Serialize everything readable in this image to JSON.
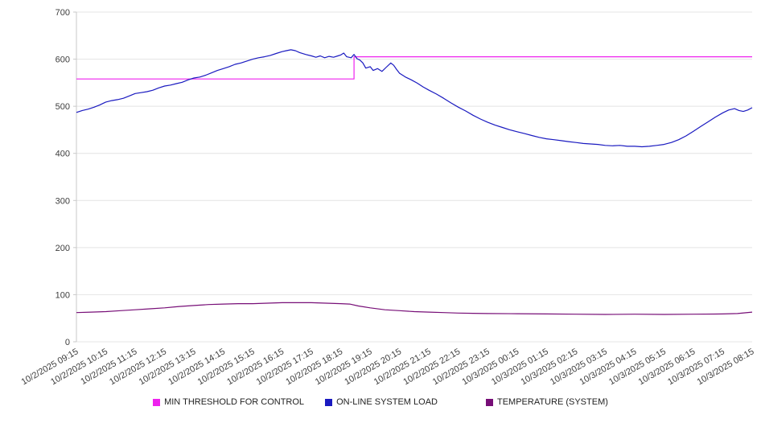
{
  "chart_data": {
    "type": "line",
    "title": "",
    "xlabel": "",
    "ylabel": "",
    "ylim": [
      0,
      700
    ],
    "yticks": [
      0,
      100,
      200,
      300,
      400,
      500,
      600,
      700
    ],
    "grid": true,
    "legend_position": "bottom",
    "grid_color": "#e4e4e4",
    "axis_color": "#c9c9c9",
    "label_color": "#3d3d3d",
    "background_color": "#ffffff",
    "x_labels": [
      "10/2/2025 09:15",
      "10/2/2025 10:15",
      "10/2/2025 11:15",
      "10/2/2025 12:15",
      "10/2/2025 13:15",
      "10/2/2025 14:15",
      "10/2/2025 15:15",
      "10/2/2025 16:15",
      "10/2/2025 17:15",
      "10/2/2025 18:15",
      "10/2/2025 19:15",
      "10/2/2025 20:15",
      "10/2/2025 21:15",
      "10/2/2025 22:15",
      "10/2/2025 23:15",
      "10/3/2025 00:15",
      "10/3/2025 01:15",
      "10/3/2025 02:15",
      "10/3/2025 03:15",
      "10/3/2025 04:15",
      "10/3/2025 05:15",
      "10/3/2025 06:15",
      "10/3/2025 07:15",
      "10/3/2025 08:15"
    ],
    "series": [
      {
        "name": "MIN THRESHOLD FOR CONTROL",
        "color": "#ee22ee",
        "points": [
          [
            0,
            558
          ],
          [
            9.45,
            558
          ],
          [
            9.45,
            605
          ],
          [
            23,
            605
          ]
        ]
      },
      {
        "name": "ON-LINE SYSTEM LOAD",
        "color": "#1a1ac0",
        "points": [
          [
            0,
            487
          ],
          [
            0.2,
            491
          ],
          [
            0.4,
            494
          ],
          [
            0.6,
            498
          ],
          [
            0.8,
            503
          ],
          [
            1,
            509
          ],
          [
            1.2,
            512
          ],
          [
            1.4,
            514
          ],
          [
            1.6,
            517
          ],
          [
            1.8,
            522
          ],
          [
            2,
            527
          ],
          [
            2.2,
            529
          ],
          [
            2.4,
            531
          ],
          [
            2.6,
            534
          ],
          [
            2.8,
            539
          ],
          [
            3,
            543
          ],
          [
            3.2,
            545
          ],
          [
            3.4,
            548
          ],
          [
            3.6,
            551
          ],
          [
            3.8,
            556
          ],
          [
            4,
            560
          ],
          [
            4.2,
            562
          ],
          [
            4.4,
            566
          ],
          [
            4.6,
            571
          ],
          [
            4.8,
            576
          ],
          [
            5,
            580
          ],
          [
            5.2,
            584
          ],
          [
            5.4,
            589
          ],
          [
            5.6,
            592
          ],
          [
            5.8,
            596
          ],
          [
            6,
            600
          ],
          [
            6.2,
            603
          ],
          [
            6.4,
            605
          ],
          [
            6.6,
            608
          ],
          [
            6.8,
            612
          ],
          [
            7,
            616
          ],
          [
            7.15,
            618
          ],
          [
            7.3,
            620
          ],
          [
            7.45,
            618
          ],
          [
            7.6,
            614
          ],
          [
            7.8,
            610
          ],
          [
            8,
            607
          ],
          [
            8.15,
            604
          ],
          [
            8.3,
            607
          ],
          [
            8.45,
            603
          ],
          [
            8.6,
            606
          ],
          [
            8.75,
            604
          ],
          [
            8.9,
            607
          ],
          [
            9,
            609
          ],
          [
            9.1,
            613
          ],
          [
            9.2,
            605
          ],
          [
            9.35,
            603
          ],
          [
            9.45,
            610
          ],
          [
            9.55,
            601
          ],
          [
            9.65,
            598
          ],
          [
            9.75,
            592
          ],
          [
            9.85,
            581
          ],
          [
            10,
            584
          ],
          [
            10.1,
            576
          ],
          [
            10.25,
            580
          ],
          [
            10.4,
            574
          ],
          [
            10.55,
            583
          ],
          [
            10.7,
            592
          ],
          [
            10.8,
            587
          ],
          [
            10.9,
            578
          ],
          [
            11,
            570
          ],
          [
            11.2,
            562
          ],
          [
            11.4,
            556
          ],
          [
            11.6,
            549
          ],
          [
            11.8,
            541
          ],
          [
            12,
            534
          ],
          [
            12.25,
            526
          ],
          [
            12.5,
            517
          ],
          [
            12.75,
            507
          ],
          [
            13,
            498
          ],
          [
            13.25,
            490
          ],
          [
            13.5,
            481
          ],
          [
            13.75,
            473
          ],
          [
            14,
            466
          ],
          [
            14.25,
            460
          ],
          [
            14.5,
            455
          ],
          [
            14.75,
            450
          ],
          [
            15,
            446
          ],
          [
            15.25,
            442
          ],
          [
            15.5,
            438
          ],
          [
            15.75,
            434
          ],
          [
            16,
            431
          ],
          [
            16.25,
            429
          ],
          [
            16.5,
            427
          ],
          [
            16.75,
            425
          ],
          [
            17,
            423
          ],
          [
            17.25,
            421
          ],
          [
            17.5,
            420
          ],
          [
            17.75,
            419
          ],
          [
            18,
            417
          ],
          [
            18.25,
            416
          ],
          [
            18.5,
            417
          ],
          [
            18.75,
            415
          ],
          [
            19,
            415
          ],
          [
            19.25,
            414
          ],
          [
            19.5,
            415
          ],
          [
            19.75,
            417
          ],
          [
            20,
            419
          ],
          [
            20.25,
            423
          ],
          [
            20.5,
            429
          ],
          [
            20.75,
            437
          ],
          [
            21,
            447
          ],
          [
            21.25,
            457
          ],
          [
            21.5,
            467
          ],
          [
            21.75,
            477
          ],
          [
            22,
            486
          ],
          [
            22.2,
            492
          ],
          [
            22.4,
            495
          ],
          [
            22.55,
            491
          ],
          [
            22.7,
            489
          ],
          [
            22.85,
            492
          ],
          [
            23,
            497
          ]
        ]
      },
      {
        "name": "TEMPERATURE (SYSTEM)",
        "color": "#770e77",
        "points": [
          [
            0,
            62
          ],
          [
            0.5,
            63
          ],
          [
            1,
            64
          ],
          [
            1.5,
            66
          ],
          [
            2,
            68
          ],
          [
            2.5,
            70
          ],
          [
            3,
            72
          ],
          [
            3.5,
            75
          ],
          [
            4,
            77
          ],
          [
            4.5,
            79
          ],
          [
            5,
            80
          ],
          [
            5.5,
            81
          ],
          [
            6,
            81
          ],
          [
            6.5,
            82
          ],
          [
            7,
            83
          ],
          [
            7.5,
            83
          ],
          [
            8,
            83
          ],
          [
            8.5,
            82
          ],
          [
            9,
            81
          ],
          [
            9.3,
            80
          ],
          [
            9.6,
            76
          ],
          [
            10,
            72
          ],
          [
            10.5,
            68
          ],
          [
            11,
            66
          ],
          [
            11.5,
            64
          ],
          [
            12,
            63
          ],
          [
            12.5,
            62
          ],
          [
            13,
            61
          ],
          [
            13.5,
            60.5
          ],
          [
            14,
            60
          ],
          [
            15,
            59.5
          ],
          [
            16,
            59
          ],
          [
            17,
            58.5
          ],
          [
            18,
            58
          ],
          [
            19,
            58.5
          ],
          [
            20,
            58
          ],
          [
            21,
            58.5
          ],
          [
            22,
            59
          ],
          [
            22.5,
            60
          ],
          [
            23,
            63
          ]
        ]
      }
    ]
  }
}
